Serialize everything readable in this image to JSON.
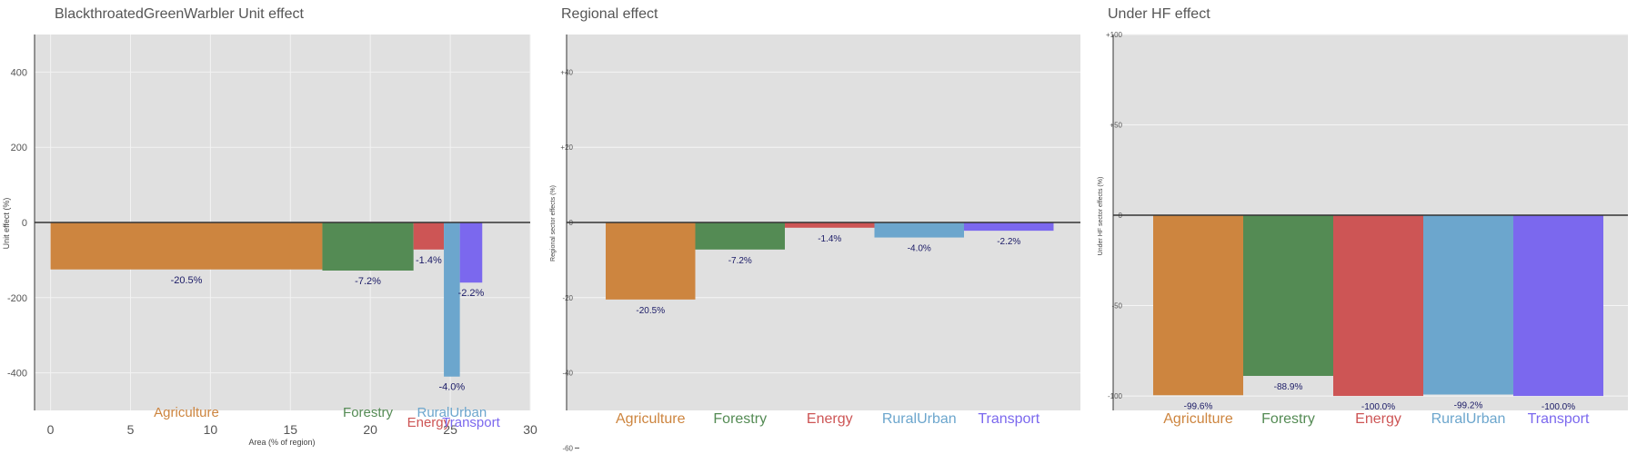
{
  "chart_data": [
    {
      "type": "bar",
      "title": "BlackthroatedGreenWarbler Unit effect",
      "xlabel": "Area (% of region)",
      "ylabel": "Unit effect (%)",
      "xlim": [
        -1,
        30
      ],
      "ylim": [
        -500,
        500
      ],
      "xticks": [
        "0",
        "5",
        "10",
        "15",
        "20",
        "25",
        "30"
      ],
      "yticks": [
        "-400",
        "-200",
        "0",
        "200",
        "400"
      ],
      "grid": true,
      "bars": [
        {
          "name": "Agriculture",
          "x0": 0,
          "x1": 17,
          "value": -125,
          "label": "-20.5%",
          "color": "#CD853F"
        },
        {
          "name": "Forestry",
          "x0": 17,
          "x1": 22.7,
          "value": -128,
          "label": "-7.2%",
          "color": "#548B54"
        },
        {
          "name": "Energy",
          "x0": 22.7,
          "x1": 24.6,
          "value": -72,
          "label": "-1.4%",
          "color": "#CD5555"
        },
        {
          "name": "RuralUrban",
          "x0": 24.6,
          "x1": 25.6,
          "value": -410,
          "label": "-4.0%",
          "color": "#6CA6CD"
        },
        {
          "name": "Transport",
          "x0": 25.6,
          "x1": 27,
          "value": -160,
          "label": "-2.2%",
          "color": "#7B68EE"
        }
      ]
    },
    {
      "type": "bar",
      "title": "Regional effect",
      "xlabel": "",
      "ylabel": "Regional sector effects (%)",
      "ylim": [
        -50,
        50
      ],
      "yticks": [
        "-60",
        "-40",
        "-20",
        "0",
        "+20",
        "+40"
      ],
      "grid": true,
      "categories": [
        "Agriculture",
        "Forestry",
        "Energy",
        "RuralUrban",
        "Transport"
      ],
      "values": [
        -20.5,
        -7.2,
        -1.4,
        -4.0,
        -2.2
      ],
      "labels": [
        "-20.5%",
        "-7.2%",
        "-1.4%",
        "-4.0%",
        "-2.2%"
      ],
      "colors": [
        "#CD853F",
        "#548B54",
        "#CD5555",
        "#6CA6CD",
        "#7B68EE"
      ]
    },
    {
      "type": "bar",
      "title": "Under HF effect",
      "xlabel": "",
      "ylabel": "Under HF sector effects (%)",
      "ylim": [
        -108,
        100
      ],
      "yticks": [
        "-100",
        "-50",
        "0",
        "+50",
        "+100"
      ],
      "grid": true,
      "categories": [
        "Agriculture",
        "Forestry",
        "Energy",
        "RuralUrban",
        "Transport"
      ],
      "values": [
        -99.6,
        -88.9,
        -100.0,
        -99.2,
        -100.0
      ],
      "labels": [
        "-99.6%",
        "-88.9%",
        "-100.0%",
        "-99.2%",
        "-100.0%"
      ],
      "colors": [
        "#CD853F",
        "#548B54",
        "#CD5555",
        "#6CA6CD",
        "#7B68EE"
      ]
    }
  ]
}
